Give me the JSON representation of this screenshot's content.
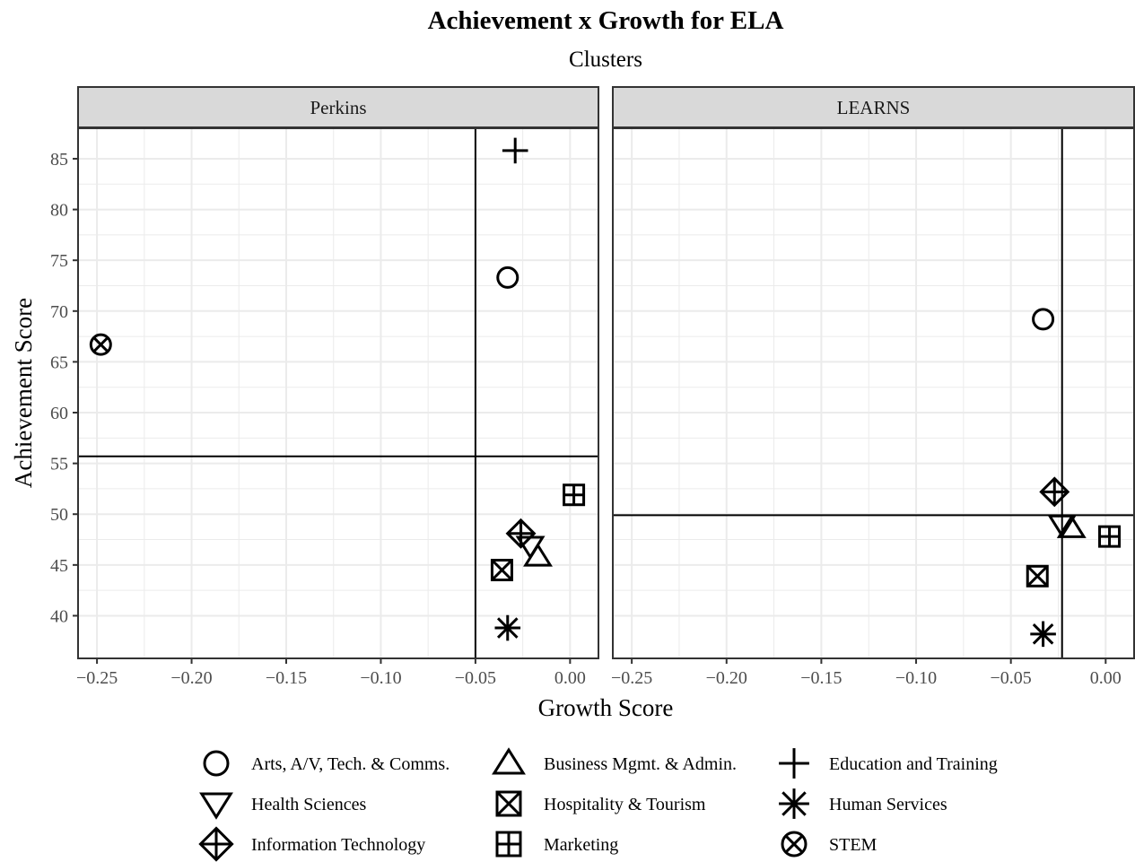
{
  "chart_data": {
    "type": "scatter",
    "title": "Achievement x Growth for ELA",
    "subtitle": "Clusters",
    "xlabel": "Growth Score",
    "ylabel": "Achievement Score",
    "xlim": [
      -0.26,
      0.015
    ],
    "ylim": [
      35.8,
      88
    ],
    "x_ticks": [
      -0.25,
      -0.2,
      -0.15,
      -0.1,
      -0.05,
      0.0
    ],
    "x_tick_labels": [
      "−0.25",
      "−0.20",
      "−0.15",
      "−0.10",
      "−0.05",
      "0.00"
    ],
    "y_ticks": [
      40,
      45,
      50,
      55,
      60,
      65,
      70,
      75,
      80,
      85
    ],
    "y_tick_labels": [
      "40",
      "45",
      "50",
      "55",
      "60",
      "65",
      "70",
      "75",
      "80",
      "85"
    ],
    "grid": true,
    "legend_position": "bottom",
    "series": [
      {
        "name": "Arts, A/V, Tech. & Comms.",
        "shape": "circle"
      },
      {
        "name": "Business Mgmt. & Admin.",
        "shape": "triangle-up"
      },
      {
        "name": "Education and Training",
        "shape": "plus"
      },
      {
        "name": "Health Sciences",
        "shape": "triangle-down"
      },
      {
        "name": "Hospitality & Tourism",
        "shape": "square-cross"
      },
      {
        "name": "Human Services",
        "shape": "asterisk"
      },
      {
        "name": "Information Technology",
        "shape": "diamond-plus"
      },
      {
        "name": "Marketing",
        "shape": "square-plus"
      },
      {
        "name": "STEM",
        "shape": "circle-cross"
      }
    ],
    "panels": [
      {
        "name": "Perkins",
        "vline": -0.05,
        "hline": 55.7,
        "points": [
          {
            "series": "Education and Training",
            "x": -0.029,
            "y": 85.8
          },
          {
            "series": "Arts, A/V, Tech. & Comms.",
            "x": -0.033,
            "y": 73.3
          },
          {
            "series": "STEM",
            "x": -0.248,
            "y": 66.7
          },
          {
            "series": "Marketing",
            "x": 0.002,
            "y": 51.9
          },
          {
            "series": "Information Technology",
            "x": -0.026,
            "y": 48.1
          },
          {
            "series": "Health Sciences",
            "x": -0.021,
            "y": 46.9
          },
          {
            "series": "Business Mgmt. & Admin.",
            "x": -0.017,
            "y": 45.8
          },
          {
            "series": "Hospitality & Tourism",
            "x": -0.036,
            "y": 44.5
          },
          {
            "series": "Human Services",
            "x": -0.033,
            "y": 38.8
          }
        ]
      },
      {
        "name": "LEARNS",
        "vline": -0.023,
        "hline": 49.9,
        "points": [
          {
            "series": "Arts, A/V, Tech. & Comms.",
            "x": -0.033,
            "y": 69.2
          },
          {
            "series": "Information Technology",
            "x": -0.027,
            "y": 52.2
          },
          {
            "series": "Health Sciences",
            "x": -0.023,
            "y": 49.0
          },
          {
            "series": "Business Mgmt. & Admin.",
            "x": -0.018,
            "y": 48.6
          },
          {
            "series": "Marketing",
            "x": 0.002,
            "y": 47.8
          },
          {
            "series": "Hospitality & Tourism",
            "x": -0.036,
            "y": 43.9
          },
          {
            "series": "Human Services",
            "x": -0.033,
            "y": 38.2
          }
        ]
      }
    ]
  },
  "colors": {
    "marker": "#000000",
    "panel_border": "#333333",
    "strip_fill": "#d9d9d9",
    "grid": "#ebebeb",
    "tick_label": "#4d4d4d"
  }
}
